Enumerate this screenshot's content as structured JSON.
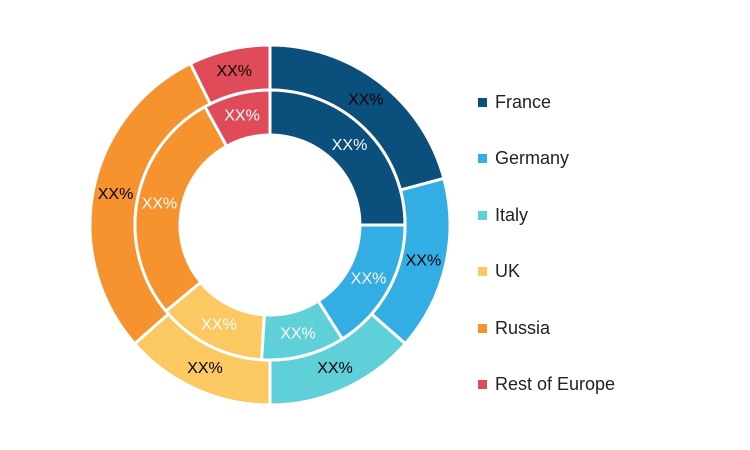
{
  "chart_data": {
    "type": "donut",
    "series": [
      {
        "ring": "outer",
        "values": [
          20,
          15,
          13,
          13,
          28,
          7
        ],
        "labels": [
          "XX%",
          "XX%",
          "XX%",
          "XX%",
          "XX%",
          "XX%"
        ]
      },
      {
        "ring": "inner",
        "values": [
          25,
          16,
          10,
          13,
          28,
          8
        ],
        "labels": [
          "XX%",
          "XX%",
          "XX%",
          "XX%",
          "XX%",
          "XX%"
        ]
      }
    ],
    "categories": [
      "France",
      "Germany",
      "Italy",
      "UK",
      "Russia",
      "Rest of Europe"
    ],
    "colors": [
      "#0b4f7c",
      "#33aee5",
      "#5fd0d8",
      "#fcc862",
      "#f6932f",
      "#e04b5a"
    ],
    "outer_label_color": "#000000",
    "inner_label_color": "#ffffff",
    "legend_position": "right"
  }
}
